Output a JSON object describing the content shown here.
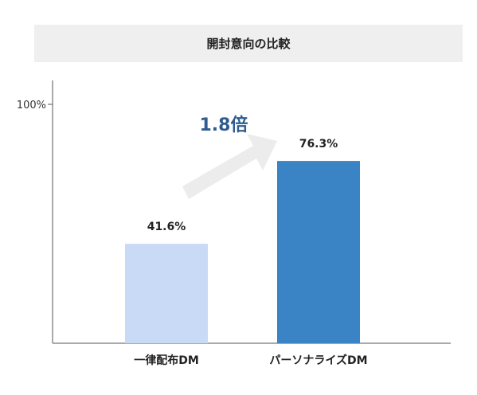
{
  "chart_data": {
    "type": "bar",
    "title": "開封意向の比較",
    "categories": [
      "一律配布DM",
      "パーソナライズDM"
    ],
    "values": [
      41.6,
      76.3
    ],
    "value_labels": [
      "41.6%",
      "76.3%"
    ],
    "ylim": [
      0,
      100
    ],
    "yticks": [
      100
    ],
    "ytick_labels": [
      "100%"
    ],
    "bar_colors": [
      "#c9daf6",
      "#3a83c4"
    ],
    "annotation": {
      "text": "1.8倍",
      "color": "#2f5d8f",
      "arrow_color": "#ececec"
    },
    "grid": false,
    "legend": "none"
  }
}
